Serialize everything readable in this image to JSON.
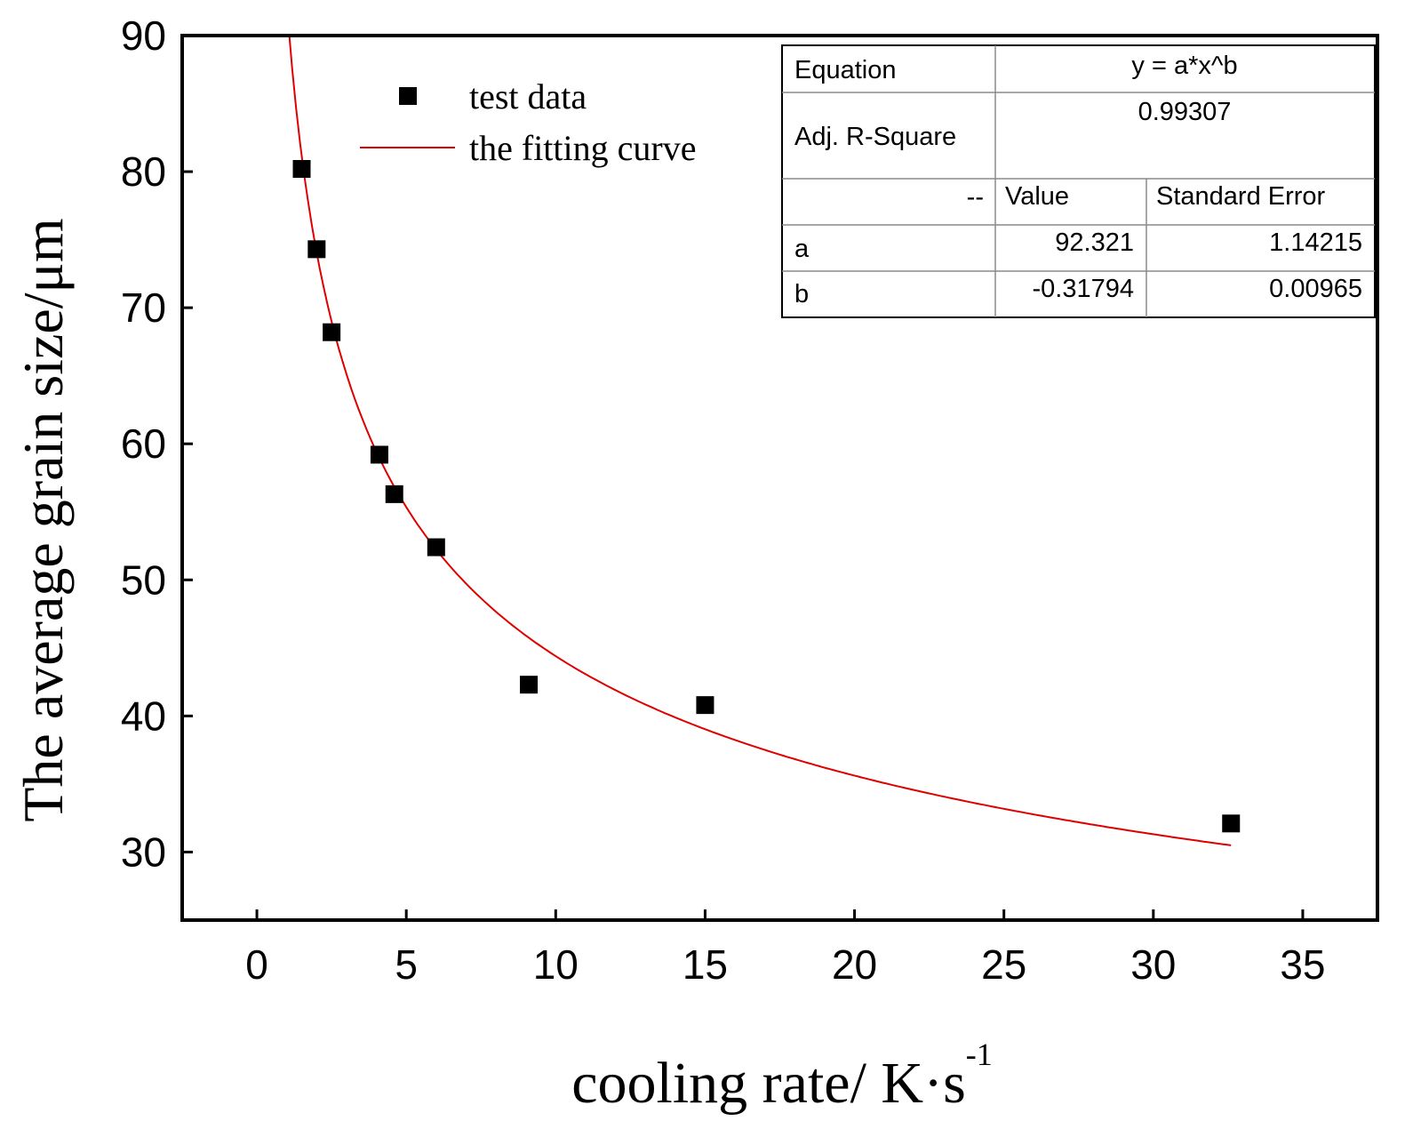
{
  "chart_data": {
    "type": "scatter",
    "xlabel": "cooling rate/ K·s",
    "xlabel_superscript": "-1",
    "ylabel": "The average grain size/μm",
    "xlim": [
      -2.5,
      37.5
    ],
    "ylim": [
      25,
      90
    ],
    "x_ticks": [
      0,
      5,
      10,
      15,
      20,
      25,
      30,
      35
    ],
    "y_ticks": [
      30,
      40,
      50,
      60,
      70,
      80,
      90
    ],
    "series": [
      {
        "name": "test data",
        "kind": "scatter",
        "color": "#000000",
        "marker": "square",
        "points": [
          {
            "x": 1.5,
            "y": 80.2
          },
          {
            "x": 2.0,
            "y": 74.3
          },
          {
            "x": 2.5,
            "y": 68.2
          },
          {
            "x": 4.1,
            "y": 59.2
          },
          {
            "x": 4.6,
            "y": 56.3
          },
          {
            "x": 6.0,
            "y": 52.4
          },
          {
            "x": 9.1,
            "y": 42.3
          },
          {
            "x": 15.0,
            "y": 40.8
          },
          {
            "x": 32.6,
            "y": 32.1
          }
        ]
      },
      {
        "name": "the fitting curve",
        "kind": "line",
        "color": "#e00000",
        "function": "power",
        "a": 92.321,
        "b": -0.31794,
        "x_range": [
          1.05,
          32.6
        ]
      }
    ],
    "legend_position": "top-left",
    "fit_table": {
      "equation_label": "Equation",
      "equation": "y = a*x^b",
      "r2_label": "Adj. R-Square",
      "r2_value": "0.99307",
      "header_dash": "--",
      "header_value": "Value",
      "header_error": "Standard Error",
      "rows": [
        {
          "param": "a",
          "value": "92.321",
          "error": "1.14215"
        },
        {
          "param": "b",
          "value": "-0.31794",
          "error": "0.00965"
        }
      ]
    }
  }
}
